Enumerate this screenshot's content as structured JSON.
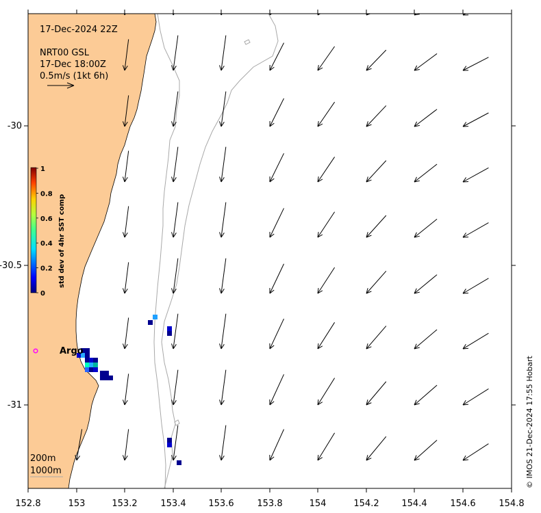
{
  "header": {
    "date_line": "17-Dec-2024 22Z",
    "source_line": "NRT00 GSL",
    "time_line": "17-Dec 18:00Z",
    "scale_line": "0.5m/s (1kt 6h)"
  },
  "colorbar": {
    "label": "std dev of 4hr SST comp",
    "ticks": [
      "1",
      "0.8",
      "0.6",
      "0.4",
      "0.2",
      "0"
    ]
  },
  "x_ticks": [
    "152.8",
    "153",
    "153.2",
    "153.4",
    "153.6",
    "153.8",
    "154",
    "154.2",
    "154.4",
    "154.6",
    "154.8"
  ],
  "y_ticks": [
    "-30",
    "-30.5",
    "-31"
  ],
  "argo_label": "Argo",
  "isobaths": [
    "200m",
    "1000m"
  ],
  "credit": "© IMOS 21-Dec-2024 17:55 Hobart",
  "colors": {
    "land": "#fccb96",
    "isobath": "#a8a8a8",
    "argo_marker": "#ff00ff"
  }
}
